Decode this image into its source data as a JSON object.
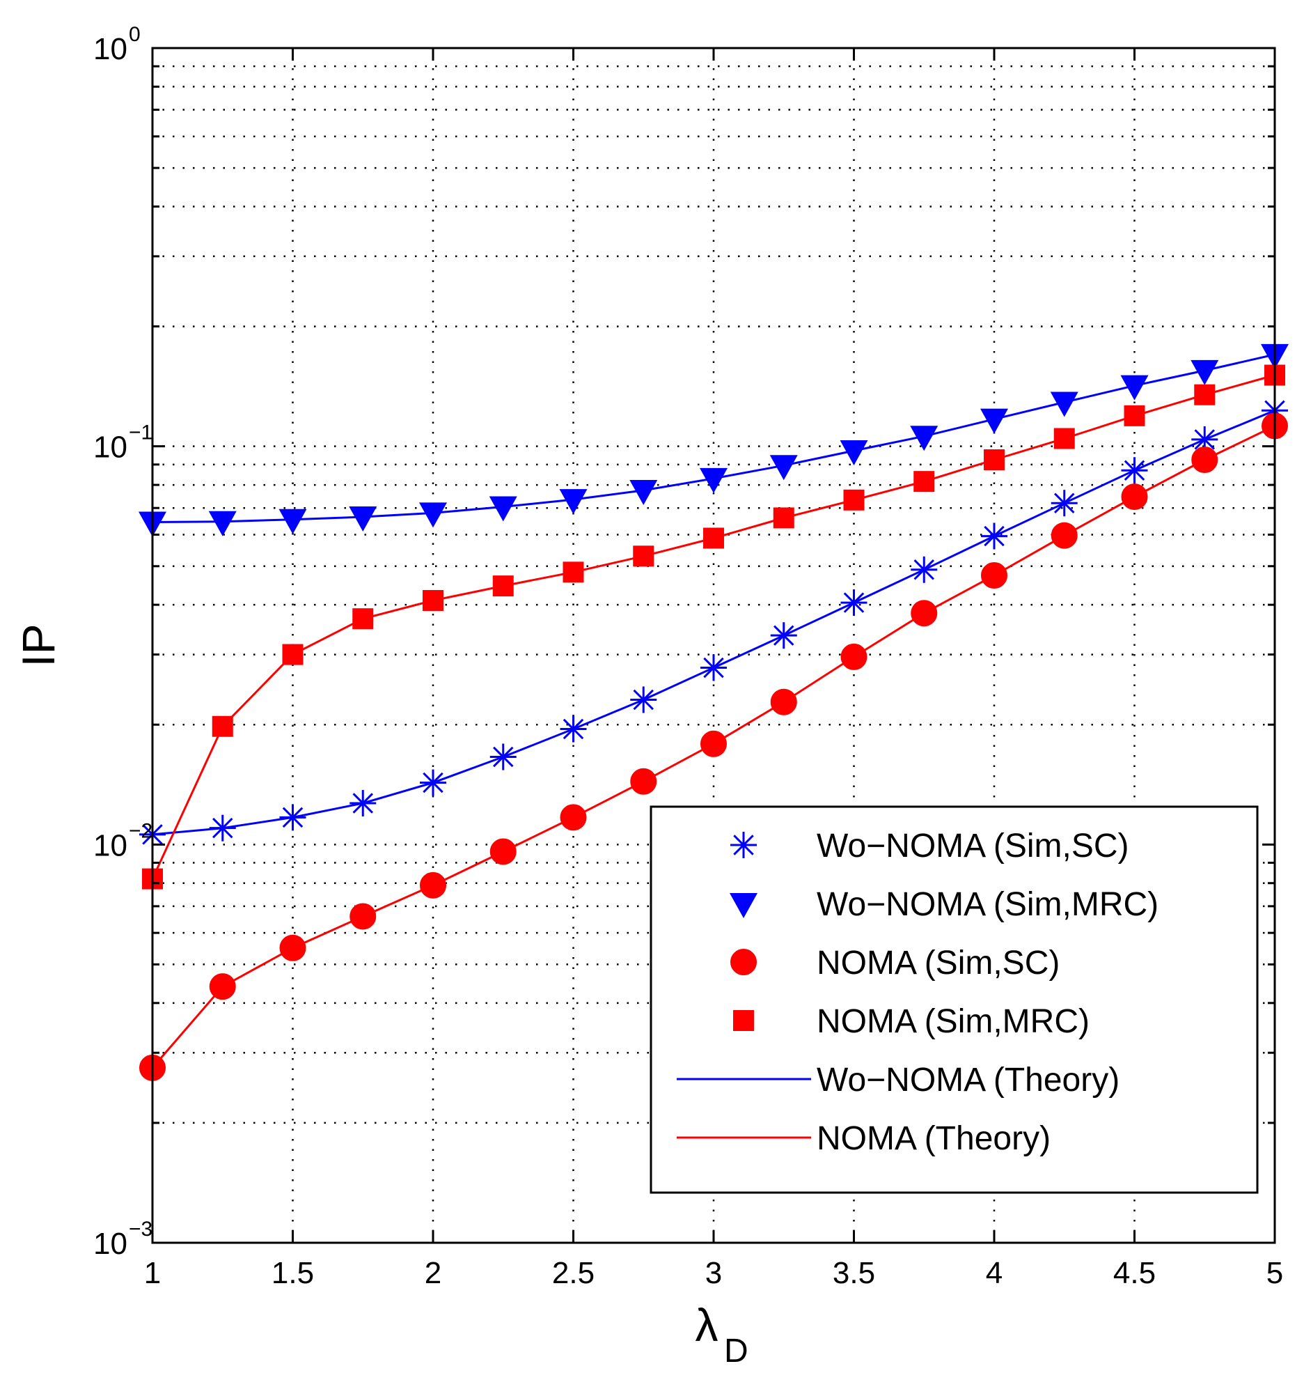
{
  "chart_data": {
    "type": "line",
    "title": "",
    "xlabel": "λ",
    "xlabel_sub": "D",
    "ylabel": "IP",
    "yscale": "log",
    "xlim": [
      1,
      5
    ],
    "ylim": [
      0.001,
      1
    ],
    "grid": true,
    "legend_position": "bottom-right",
    "x_ticks": [
      "1",
      "1.5",
      "2",
      "2.5",
      "3",
      "3.5",
      "4",
      "4.5",
      "5"
    ],
    "y_ticks": [
      {
        "base": "10",
        "exp": "0",
        "value": 1
      },
      {
        "base": "10",
        "exp": "−1",
        "value": 0.1
      },
      {
        "base": "10",
        "exp": "−2",
        "value": 0.01
      },
      {
        "base": "10",
        "exp": "−3",
        "value": 0.001
      }
    ],
    "x": [
      1,
      1.25,
      1.5,
      1.75,
      2,
      2.25,
      2.5,
      2.75,
      3,
      3.25,
      3.5,
      3.75,
      4,
      4.25,
      4.5,
      4.75,
      5
    ],
    "series": [
      {
        "name": "Wo−NOMA (Sim,SC)",
        "marker": "asterisk",
        "color": "#0000ff",
        "values": [
          0.0106,
          0.011,
          0.0117,
          0.0127,
          0.0143,
          0.0166,
          0.0195,
          0.0231,
          0.0278,
          0.0335,
          0.0405,
          0.049,
          0.0595,
          0.072,
          0.087,
          0.104,
          0.123
        ]
      },
      {
        "name": "Wo−NOMA (Sim,MRC)",
        "marker": "triangle-down",
        "color": "#0000ff",
        "values": [
          0.0645,
          0.0647,
          0.0655,
          0.0665,
          0.068,
          0.0705,
          0.0735,
          0.0775,
          0.083,
          0.0895,
          0.0975,
          0.106,
          0.117,
          0.129,
          0.142,
          0.155,
          0.17
        ]
      },
      {
        "name": "NOMA (Sim,SC)",
        "marker": "circle",
        "color": "#ff0000",
        "values": [
          0.00275,
          0.0044,
          0.0055,
          0.0066,
          0.0079,
          0.0096,
          0.0117,
          0.0144,
          0.0179,
          0.0228,
          0.0296,
          0.0381,
          0.0474,
          0.0597,
          0.0747,
          0.0925,
          0.1125
        ]
      },
      {
        "name": "NOMA (Sim,MRC)",
        "marker": "square",
        "color": "#ff0000",
        "values": [
          0.0082,
          0.0198,
          0.03,
          0.0369,
          0.041,
          0.0446,
          0.0483,
          0.053,
          0.0588,
          0.0661,
          0.0733,
          0.0816,
          0.0925,
          0.1046,
          0.1193,
          0.1347,
          0.1509
        ]
      }
    ],
    "theory_lines": [
      {
        "name": "Wo−NOMA (Theory)",
        "color": "#0000ff",
        "follows": [
          0,
          1
        ]
      },
      {
        "name": "NOMA (Theory)",
        "color": "#ff0000",
        "follows": [
          2,
          3
        ]
      }
    ],
    "legend_order": [
      "Wo−NOMA (Sim,SC)",
      "Wo−NOMA (Sim,MRC)",
      "NOMA (Sim,SC)",
      "NOMA (Sim,MRC)",
      "Wo−NOMA (Theory)",
      "NOMA (Theory)"
    ]
  }
}
